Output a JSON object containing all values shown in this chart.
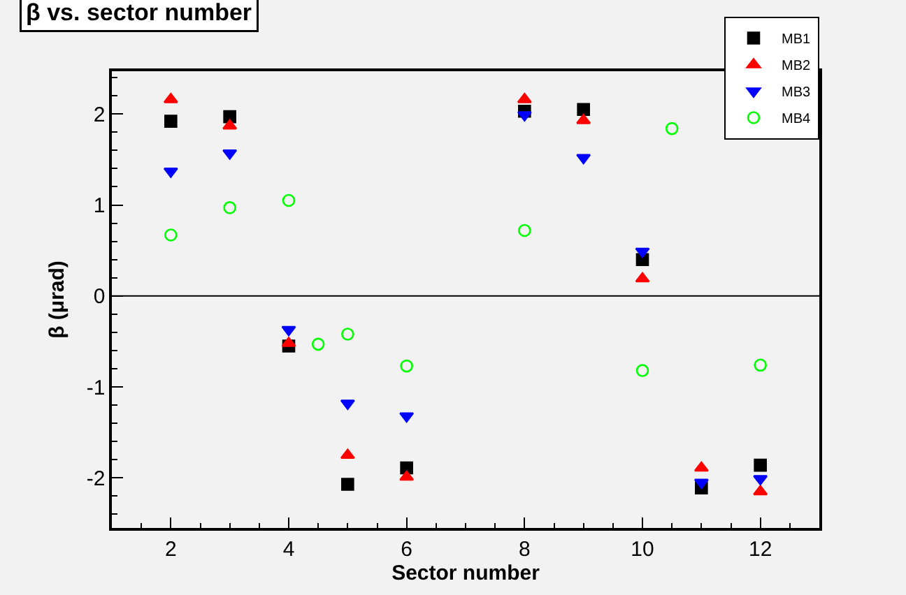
{
  "chart_data": {
    "type": "scatter",
    "title": "β vs. sector number",
    "xlabel": "Sector number",
    "ylabel": "β (μrad)",
    "xlim": [
      1,
      13
    ],
    "xticks": [
      2,
      4,
      6,
      8,
      10,
      12
    ],
    "ylim": [
      -2.55,
      2.47
    ],
    "yticks": [
      -2,
      -1,
      0,
      1,
      2
    ],
    "grid": false,
    "legend": "top right",
    "ref_lines": [
      {
        "axis": "y",
        "value": 0,
        "color": "#000000"
      }
    ],
    "series": [
      {
        "name": "MB1",
        "color": "#000000",
        "marker": "square",
        "x": [
          2,
          3,
          4,
          5,
          6,
          8,
          9,
          10,
          11,
          12
        ],
        "values": [
          1.92,
          1.97,
          -0.55,
          -2.07,
          -1.89,
          2.03,
          2.05,
          0.4,
          -2.11,
          -1.86
        ]
      },
      {
        "name": "MB2",
        "color": "#ff0000",
        "marker": "triangle-up",
        "x": [
          2,
          3,
          4,
          5,
          6,
          8,
          9,
          10,
          11,
          12
        ],
        "values": [
          2.16,
          1.87,
          -0.52,
          -1.75,
          -1.99,
          2.16,
          1.93,
          0.19,
          -1.89,
          -2.15
        ]
      },
      {
        "name": "MB3",
        "color": "#0000ff",
        "marker": "triangle-down",
        "x": [
          2,
          3,
          4,
          5,
          6,
          8,
          9,
          10,
          11,
          12
        ],
        "values": [
          1.37,
          1.57,
          -0.37,
          -1.18,
          -1.32,
          1.99,
          1.52,
          0.49,
          -2.05,
          -2.01
        ]
      },
      {
        "name": "MB4",
        "color": "#00ff00",
        "marker": "circle-open",
        "x": [
          2,
          3,
          4,
          4.5,
          5,
          6,
          8,
          10,
          10.5,
          12
        ],
        "values": [
          0.67,
          0.97,
          1.05,
          -0.53,
          -0.42,
          -0.77,
          0.72,
          -0.82,
          1.84,
          -0.76
        ]
      }
    ]
  }
}
